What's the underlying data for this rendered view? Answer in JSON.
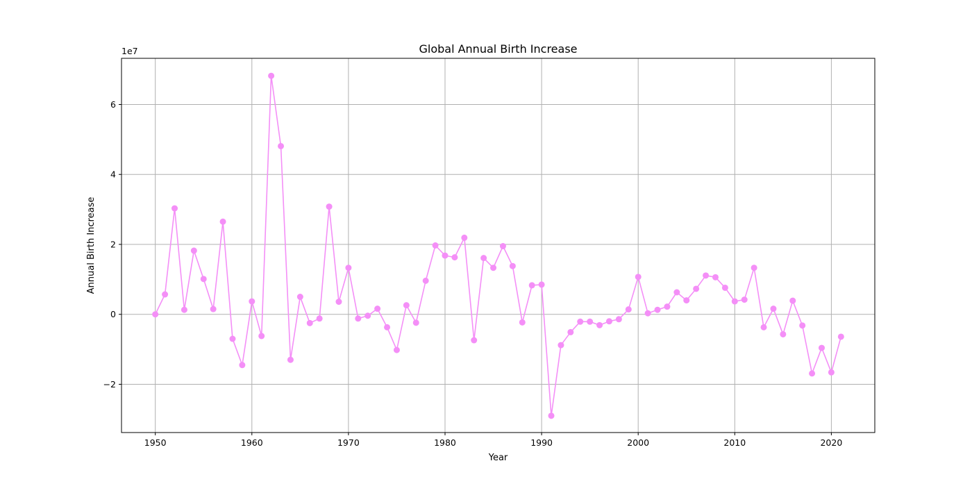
{
  "chart_data": {
    "type": "line",
    "title": "Global Annual Birth Increase",
    "xlabel": "Year",
    "ylabel": "Annual Birth Increase",
    "y_scale_label": "1e7",
    "xlim": [
      1946.5,
      2024.5
    ],
    "ylim": [
      -33800000,
      73200000
    ],
    "x_ticks": [
      1950,
      1960,
      1970,
      1980,
      1990,
      2000,
      2010,
      2020
    ],
    "y_ticks": [
      -20000000,
      0,
      20000000,
      40000000,
      60000000
    ],
    "y_tick_labels": [
      "−2",
      "0",
      "2",
      "4",
      "6"
    ],
    "grid": true,
    "legend": "none",
    "series": [
      {
        "color": "#f48ff7",
        "x": [
          1950,
          1951,
          1952,
          1953,
          1954,
          1955,
          1956,
          1957,
          1958,
          1959,
          1960,
          1961,
          1962,
          1963,
          1964,
          1965,
          1966,
          1967,
          1968,
          1969,
          1970,
          1971,
          1972,
          1973,
          1974,
          1975,
          1976,
          1977,
          1978,
          1979,
          1980,
          1981,
          1982,
          1983,
          1984,
          1985,
          1986,
          1987,
          1988,
          1989,
          1990,
          1991,
          1992,
          1993,
          1994,
          1995,
          1996,
          1997,
          1998,
          1999,
          2000,
          2001,
          2002,
          2003,
          2004,
          2005,
          2006,
          2007,
          2008,
          2009,
          2010,
          2011,
          2012,
          2013,
          2014,
          2015,
          2016,
          2017,
          2018,
          2019,
          2020,
          2021
        ],
        "y": [
          0,
          5700000,
          30300000,
          1300000,
          18200000,
          10100000,
          1500000,
          26500000,
          -7000000,
          -14500000,
          3700000,
          -6200000,
          68200000,
          48100000,
          -13000000,
          5000000,
          -2500000,
          -1200000,
          30800000,
          3600000,
          13300000,
          -1200000,
          -400000,
          1600000,
          -3700000,
          -10200000,
          2600000,
          -2400000,
          9600000,
          19700000,
          16800000,
          16300000,
          21900000,
          -7400000,
          16100000,
          13300000,
          19500000,
          13800000,
          -2300000,
          8300000,
          8500000,
          -29000000,
          -8800000,
          -5100000,
          -2100000,
          -2100000,
          -3100000,
          -2000000,
          -1400000,
          1400000,
          10700000,
          300000,
          1300000,
          2200000,
          6300000,
          4000000,
          7300000,
          11100000,
          10600000,
          7600000,
          3700000,
          4200000,
          13300000,
          -3700000,
          1600000,
          -5700000,
          3900000,
          -3200000,
          -16900000,
          -9600000,
          -16600000,
          -6400000
        ]
      }
    ]
  }
}
